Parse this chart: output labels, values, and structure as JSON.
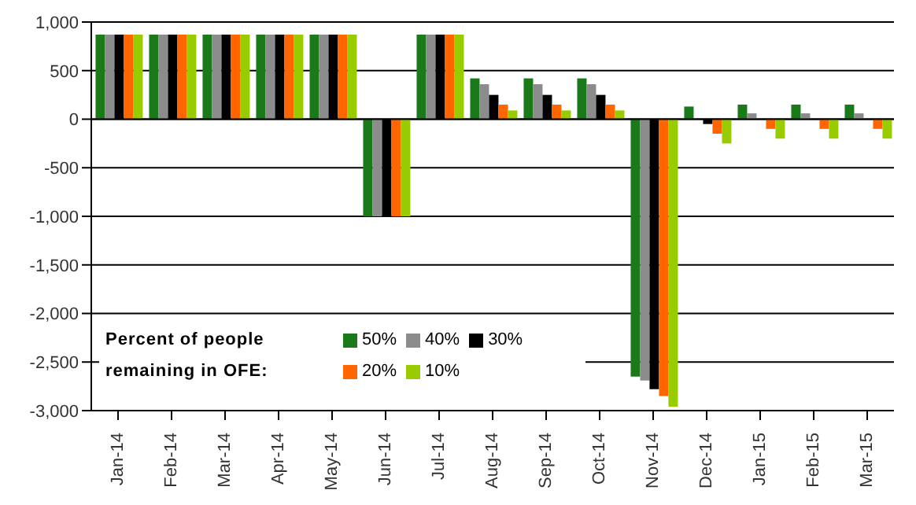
{
  "chart_data": {
    "type": "bar",
    "categories": [
      "Jan-14",
      "Feb-14",
      "Mar-14",
      "Apr-14",
      "May-14",
      "Jun-14",
      "Jul-14",
      "Aug-14",
      "Sep-14",
      "Oct-14",
      "Nov-14",
      "Dec-14",
      "Jan-15",
      "Feb-15",
      "Mar-15"
    ],
    "series": [
      {
        "name": "50%",
        "color": "#1a7a1a",
        "values": [
          870,
          870,
          870,
          870,
          870,
          -1000,
          870,
          420,
          420,
          420,
          -2650,
          130,
          150,
          150,
          150
        ]
      },
      {
        "name": "40%",
        "color": "#8c8c8c",
        "values": [
          870,
          870,
          870,
          870,
          870,
          -1000,
          870,
          360,
          360,
          360,
          -2690,
          0,
          60,
          60,
          60
        ]
      },
      {
        "name": "30%",
        "color": "#000000",
        "values": [
          870,
          870,
          870,
          870,
          870,
          -1000,
          870,
          250,
          250,
          250,
          -2780,
          -50,
          0,
          0,
          0
        ]
      },
      {
        "name": "20%",
        "color": "#ff6600",
        "values": [
          870,
          870,
          870,
          870,
          870,
          -1000,
          870,
          150,
          150,
          150,
          -2850,
          -150,
          -100,
          -100,
          -100
        ]
      },
      {
        "name": "10%",
        "color": "#99cc00",
        "values": [
          870,
          870,
          870,
          870,
          870,
          -1000,
          870,
          90,
          90,
          90,
          -2960,
          -250,
          -200,
          -200,
          -200
        ]
      }
    ],
    "ylim": [
      -3000,
      1000
    ],
    "yticks": [
      {
        "value": -3000,
        "label": "-3,000"
      },
      {
        "value": -2500,
        "label": "-2,500"
      },
      {
        "value": -2000,
        "label": "-2,000"
      },
      {
        "value": -1500,
        "label": "-1,500"
      },
      {
        "value": -1000,
        "label": "-1,000"
      },
      {
        "value": -500,
        "label": "-500"
      },
      0,
      500,
      {
        "value": 1000,
        "label": "1,000"
      }
    ],
    "grid": "y",
    "legend": "bottom left",
    "legend_title": "Percent of people remaining in OFE:"
  }
}
